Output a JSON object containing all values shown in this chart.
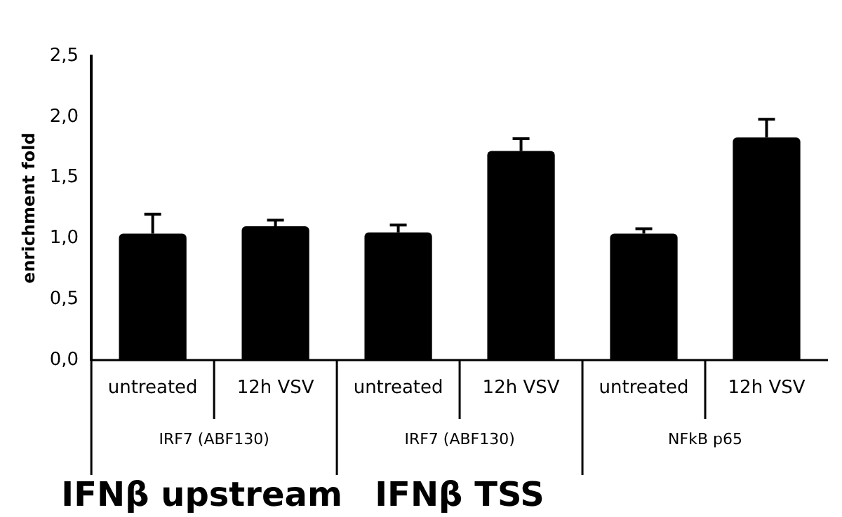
{
  "chart_data": {
    "type": "bar",
    "ylabel": "enrichment fold",
    "categories": [
      "untreated",
      "12h VSV",
      "untreated",
      "12h VSV",
      "untreated",
      "12h VSV"
    ],
    "values": [
      1.04,
      1.1,
      1.05,
      1.72,
      1.04,
      1.83
    ],
    "color": "#000000",
    "errors": [
      [
        1.04,
        1.2
      ],
      [
        1.1,
        1.15
      ],
      [
        1.05,
        1.11
      ],
      [
        1.72,
        1.82
      ],
      [
        1.04,
        1.08
      ],
      [
        1.83,
        1.98
      ]
    ],
    "ylim": [
      0,
      2.5
    ],
    "yticks": [
      {
        "value": 0,
        "label": "0,0"
      },
      {
        "value": 0.5,
        "label": "0,5"
      },
      {
        "value": 1,
        "label": "1,0"
      },
      {
        "value": 1.5,
        "label": "1,5"
      },
      {
        "value": 2,
        "label": "2,0"
      },
      {
        "value": 2.5,
        "label": "2,5"
      }
    ],
    "grid": false,
    "legend": false,
    "annotations": [
      "IRF7 (ABF130)",
      "IRF7 (ABF130)",
      "NFkB p65",
      "IFNβ upstream",
      "IFNβ TSS"
    ]
  }
}
